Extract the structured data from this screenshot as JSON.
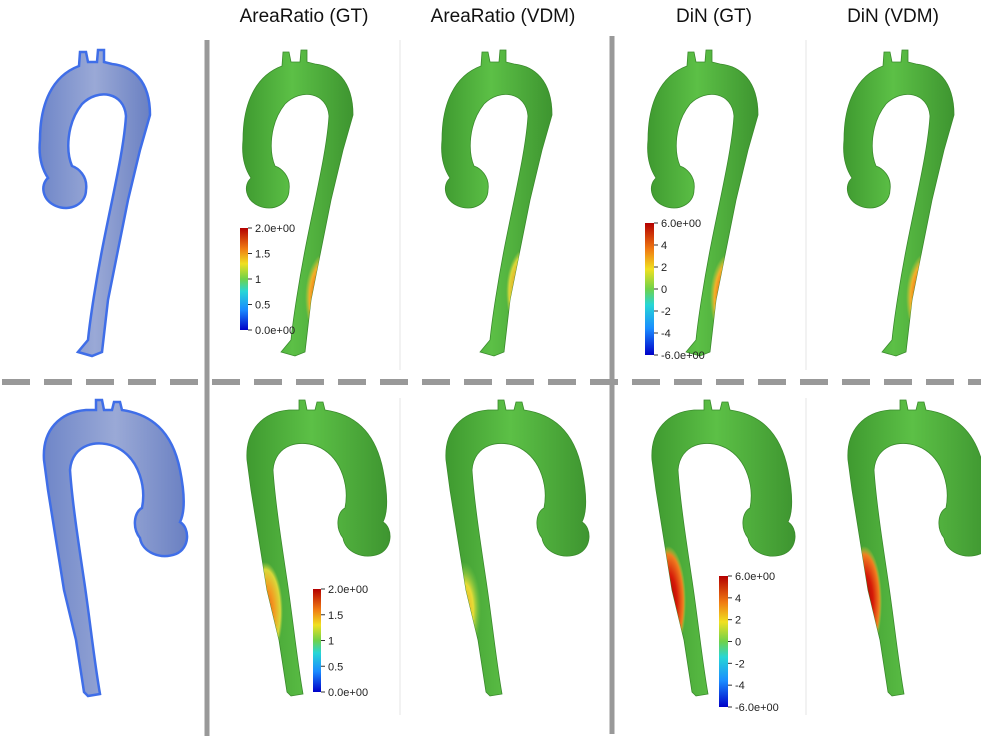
{
  "columns": [
    {
      "title": ""
    },
    {
      "title": "AreaRatio (GT)"
    },
    {
      "title": "AreaRatio (VDM)"
    },
    {
      "title": "DiN (GT)"
    },
    {
      "title": "DiN (VDM)"
    }
  ],
  "colorbars": [
    {
      "id": "arearatio-top",
      "labels": [
        "2.0e+00",
        "1.5",
        "1",
        "0.5",
        "0.0e+00"
      ]
    },
    {
      "id": "din-top",
      "labels": [
        "6.0e+00",
        "4",
        "2",
        "0",
        "-2",
        "-4",
        "-6.0e+00"
      ]
    },
    {
      "id": "arearatio-bottom",
      "labels": [
        "2.0e+00",
        "1.5",
        "1",
        "0.5",
        "0.0e+00"
      ]
    },
    {
      "id": "din-bottom",
      "labels": [
        "6.0e+00",
        "4",
        "2",
        "0",
        "-2",
        "-4",
        "-6.0e+00"
      ]
    }
  ],
  "colors": {
    "mesh_blue": "#7f94cf",
    "mesh_edge": "#3f6ee8",
    "surface_green": "#4caf3a",
    "divider_gray": "#999999",
    "cell_line": "#e6e6e6"
  },
  "rows": [
    {
      "orientation": "left-view",
      "panels": [
        {
          "kind": "mesh"
        },
        {
          "kind": "field",
          "hotspot": "red-lower-descending"
        },
        {
          "kind": "field",
          "hotspot": "orange-lower-descending"
        },
        {
          "kind": "field",
          "hotspot": "red-lower-descending"
        },
        {
          "kind": "field",
          "hotspot": "red-lower-descending"
        }
      ]
    },
    {
      "orientation": "right-view",
      "panels": [
        {
          "kind": "mesh"
        },
        {
          "kind": "field",
          "hotspot": "orange-mid-descending"
        },
        {
          "kind": "field",
          "hotspot": "yellow-mid-descending"
        },
        {
          "kind": "field",
          "hotspot": "darkred-mid-descending"
        },
        {
          "kind": "field",
          "hotspot": "darkred-mid-descending"
        }
      ]
    }
  ]
}
